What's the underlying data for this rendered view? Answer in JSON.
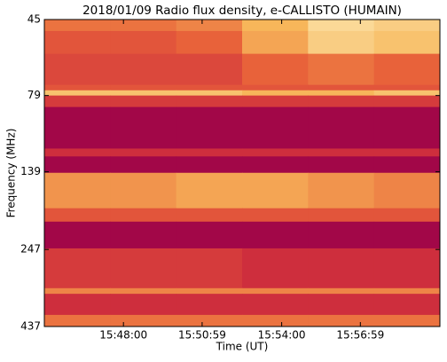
{
  "chart_data": {
    "type": "heatmap",
    "title": "2018/01/09  Radio flux density, e-CALLISTO (HUMAIN)",
    "xlabel": "Time (UT)",
    "ylabel": "Frequency (MHz)",
    "xlim": [
      "15:45:00",
      "16:00:00"
    ],
    "xticks": [
      "15:48:00",
      "15:50:59",
      "15:54:00",
      "15:56:59"
    ],
    "ylim": [
      45,
      437
    ],
    "yscale": "log",
    "yinverted": true,
    "yticks": [
      45,
      79,
      139,
      247,
      437
    ],
    "time_bins": [
      "15:45:00",
      "15:47:30",
      "15:50:00",
      "15:52:30",
      "15:55:00",
      "15:57:30",
      "16:00:00"
    ],
    "freq_bins": [
      45,
      49,
      58,
      73,
      76,
      79,
      86,
      117,
      124,
      140,
      182,
      201,
      245,
      329,
      343,
      401,
      437
    ],
    "colormap": [
      "#99004a",
      "#c8213e",
      "#e8623a",
      "#f7b65a",
      "#fdf0c0"
    ],
    "z": [
      [
        0.55,
        0.55,
        0.6,
        0.75,
        0.9,
        0.85
      ],
      [
        0.45,
        0.45,
        0.5,
        0.7,
        0.85,
        0.8
      ],
      [
        0.4,
        0.4,
        0.4,
        0.5,
        0.55,
        0.5
      ],
      [
        0.45,
        0.45,
        0.45,
        0.45,
        0.45,
        0.45
      ],
      [
        0.8,
        0.8,
        0.8,
        0.75,
        0.75,
        0.8
      ],
      [
        0.35,
        0.35,
        0.35,
        0.35,
        0.35,
        0.35
      ],
      [
        0.05,
        0.05,
        0.05,
        0.05,
        0.05,
        0.05
      ],
      [
        0.3,
        0.3,
        0.3,
        0.3,
        0.3,
        0.3
      ],
      [
        0.05,
        0.05,
        0.05,
        0.05,
        0.05,
        0.05
      ],
      [
        0.65,
        0.65,
        0.7,
        0.7,
        0.65,
        0.6
      ],
      [
        0.45,
        0.45,
        0.45,
        0.45,
        0.45,
        0.45
      ],
      [
        0.05,
        0.05,
        0.05,
        0.05,
        0.05,
        0.05
      ],
      [
        0.35,
        0.35,
        0.35,
        0.3,
        0.3,
        0.3
      ],
      [
        0.6,
        0.6,
        0.6,
        0.6,
        0.6,
        0.6
      ],
      [
        0.3,
        0.3,
        0.3,
        0.3,
        0.3,
        0.3
      ],
      [
        0.55,
        0.55,
        0.55,
        0.55,
        0.55,
        0.55
      ]
    ]
  }
}
